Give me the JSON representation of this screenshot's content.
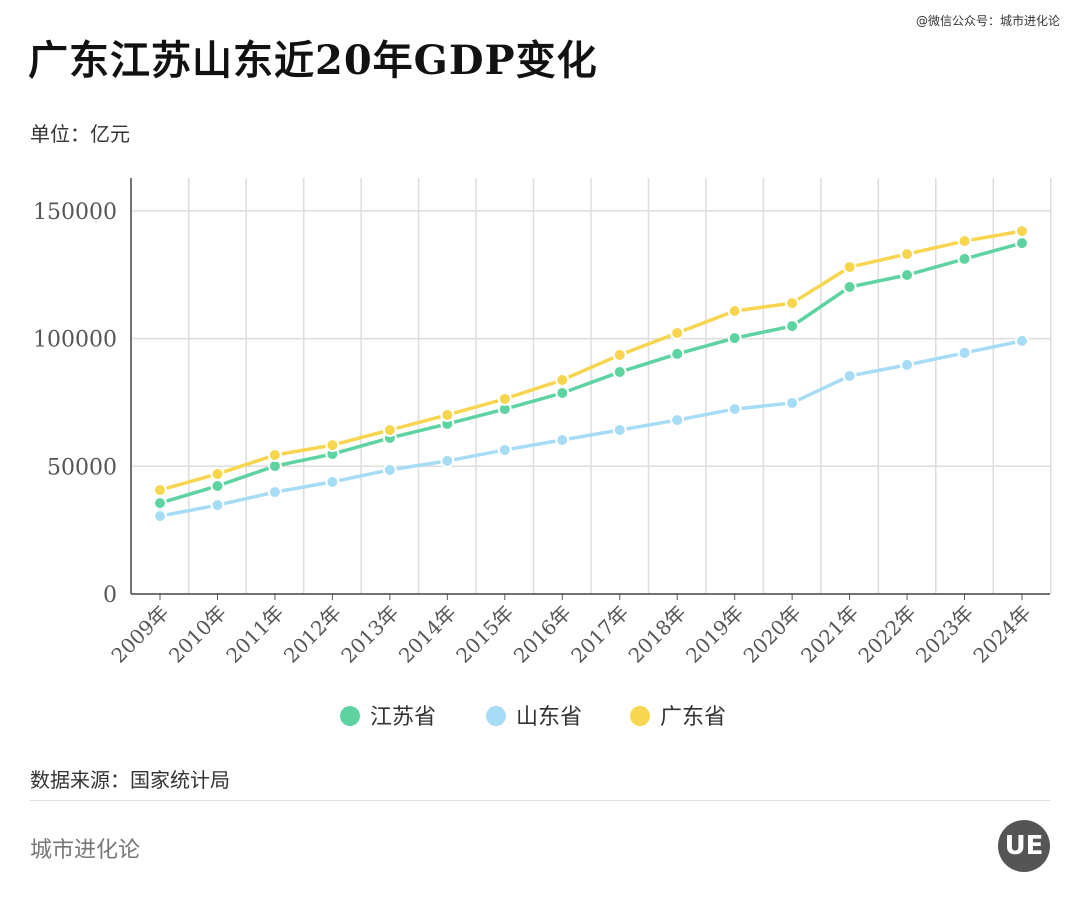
{
  "header": {
    "title": "广东江苏山东近20年GDP变化",
    "credit": "@微信公众号：城市进化论",
    "unit": "单位：亿元"
  },
  "footer": {
    "source": "数据来源：国家统计局",
    "brand": "城市进化论",
    "logo_text": "UE"
  },
  "chart_data": {
    "type": "line",
    "title": "广东江苏山东近20年GDP变化",
    "ylabel": "亿元",
    "ylim": [
      0,
      160000
    ],
    "yticks": [
      0,
      50000,
      100000,
      150000
    ],
    "ytick_labels": [
      "0",
      "50000",
      "100000",
      "150000"
    ],
    "grid": true,
    "legend_position": "bottom",
    "categories": [
      "2009年",
      "2010年",
      "2011年",
      "2012年",
      "2013年",
      "2014年",
      "2015年",
      "2016年",
      "2017年",
      "2018年",
      "2019年",
      "2020年",
      "2021年",
      "2022年",
      "2023年",
      "2024年"
    ],
    "series": [
      {
        "name": "江苏省",
        "color": "#5dd3a0",
        "values": [
          35600,
          42300,
          50100,
          54800,
          61100,
          66600,
          72400,
          78700,
          86900,
          94000,
          100200,
          104900,
          120200,
          124900,
          131200,
          137400
        ]
      },
      {
        "name": "山东省",
        "color": "#a6dcf5",
        "values": [
          30500,
          34800,
          39900,
          43900,
          48600,
          52100,
          56400,
          60300,
          64200,
          68100,
          72400,
          74800,
          85400,
          89700,
          94400,
          99100
        ]
      },
      {
        "name": "广东省",
        "color": "#f7d54e",
        "values": [
          40700,
          47000,
          54400,
          58300,
          64200,
          70100,
          76400,
          83800,
          93600,
          102200,
          110800,
          113900,
          128000,
          133100,
          138200,
          142100
        ]
      }
    ]
  }
}
